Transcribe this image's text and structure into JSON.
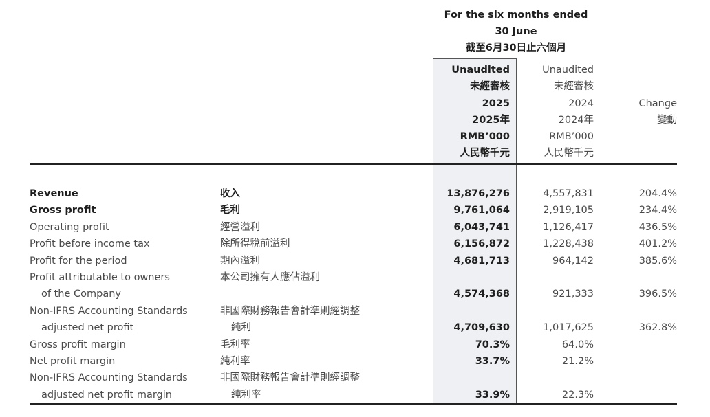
{
  "header": {
    "period_en_1": "For the six months ended",
    "period_en_2": "30 June",
    "period_zh": "截至6月30日止六個月",
    "col_2025": [
      "Unaudited",
      "未經審核",
      "2025",
      "2025年",
      "RMB’000",
      "人民幣千元"
    ],
    "col_2024": [
      "Unaudited",
      "未經審核",
      "2024",
      "2024年",
      "RMB’000",
      "人民幣千元"
    ],
    "col_change": [
      "Change",
      "變動"
    ]
  },
  "rows": [
    {
      "en": [
        "Revenue"
      ],
      "zh": [
        "收入"
      ],
      "v2025": "13,876,276",
      "v2024": "4,557,831",
      "change": "204.4%",
      "bold": true
    },
    {
      "en": [
        "Gross profit"
      ],
      "zh": [
        "毛利"
      ],
      "v2025": "9,761,064",
      "v2024": "2,919,105",
      "change": "234.4%",
      "bold": true
    },
    {
      "en": [
        "Operating profit"
      ],
      "zh": [
        "經營溢利"
      ],
      "v2025": "6,043,741",
      "v2024": "1,126,417",
      "change": "436.5%"
    },
    {
      "en": [
        "Profit before income tax"
      ],
      "zh": [
        "除所得稅前溢利"
      ],
      "v2025": "6,156,872",
      "v2024": "1,228,438",
      "change": "401.2%"
    },
    {
      "en": [
        "Profit for the period"
      ],
      "zh": [
        "期內溢利"
      ],
      "v2025": "4,681,713",
      "v2024": "964,142",
      "change": "385.6%"
    },
    {
      "en": [
        "Profit attributable to owners",
        "of the Company"
      ],
      "zh": [
        "本公司擁有人應佔溢利"
      ],
      "v2025": "4,574,368",
      "v2024": "921,333",
      "change": "396.5%"
    },
    {
      "en": [
        "Non-IFRS Accounting Standards",
        "adjusted net profit"
      ],
      "zh": [
        "非國際財務報告會計準則經調整",
        "純利"
      ],
      "v2025": "4,709,630",
      "v2024": "1,017,625",
      "change": "362.8%"
    },
    {
      "en": [
        "Gross profit margin"
      ],
      "zh": [
        "毛利率"
      ],
      "v2025": "70.3%",
      "v2024": "64.0%",
      "change": ""
    },
    {
      "en": [
        "Net profit margin"
      ],
      "zh": [
        "純利率"
      ],
      "v2025": "33.7%",
      "v2024": "21.2%",
      "change": ""
    },
    {
      "en": [
        "Non-IFRS Accounting Standards",
        "adjusted net profit margin"
      ],
      "zh": [
        "非國際財務報告會計準則經調整",
        "純利率"
      ],
      "v2025": "33.9%",
      "v2024": "22.3%",
      "change": ""
    }
  ]
}
